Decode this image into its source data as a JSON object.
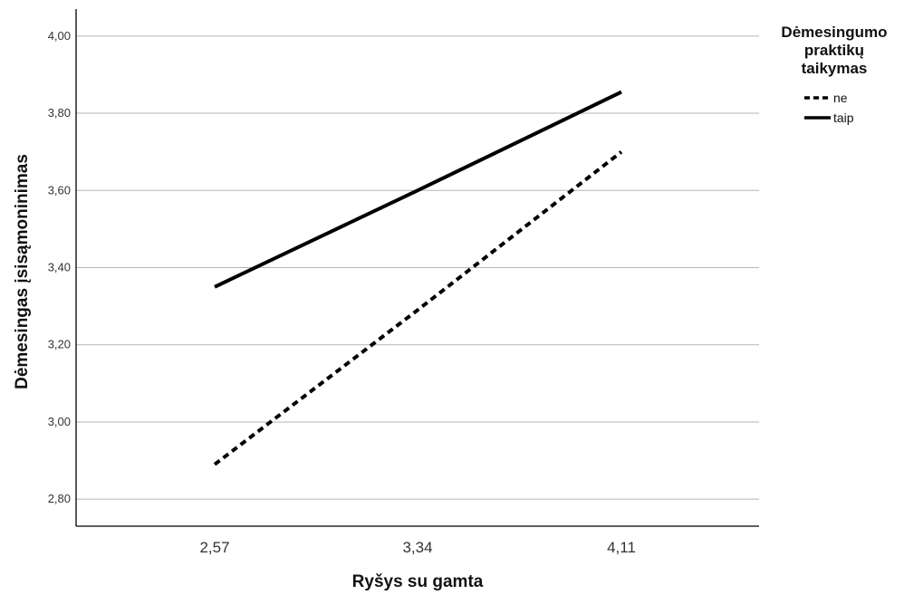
{
  "chart_data": {
    "type": "line",
    "x": [
      "2,57",
      "3,34",
      "4,11"
    ],
    "xlabel": "Ryšys su gamta",
    "ylabel": "Dėmesingas įsisąmoninimas",
    "ylim": [
      2.73,
      4.07
    ],
    "yticks": [
      "2,80",
      "3,00",
      "3,20",
      "3,40",
      "3,60",
      "3,80",
      "4,00"
    ],
    "grid": "horizontal",
    "legend": {
      "title_lines": [
        "Dėmesingumo",
        "praktikų",
        "taikymas"
      ],
      "placement": "right"
    },
    "series": [
      {
        "name": "ne",
        "values": [
          2.89,
          3.29,
          3.7
        ],
        "style": "dashed",
        "color": "#000000"
      },
      {
        "name": "taip",
        "values": [
          3.35,
          3.6,
          3.855
        ],
        "style": "solid",
        "color": "#000000"
      }
    ]
  }
}
